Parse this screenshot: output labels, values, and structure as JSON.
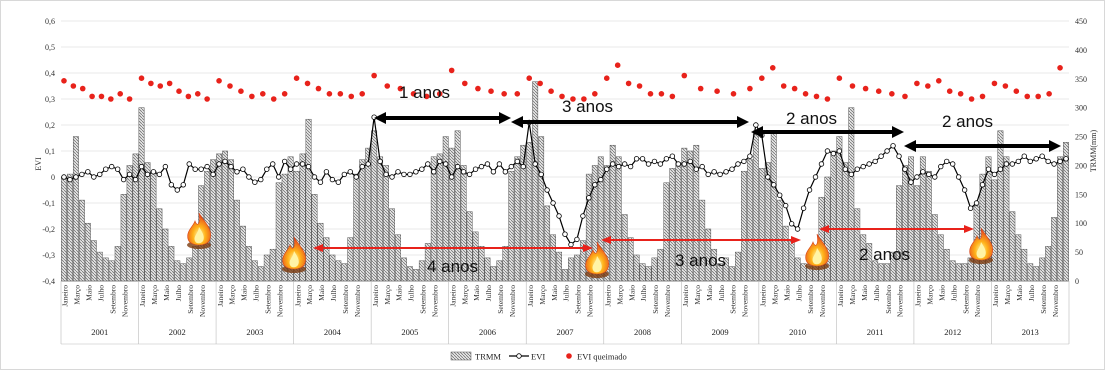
{
  "chart_data": {
    "type": "bar",
    "xlabel": "",
    "ylabel": "EVI",
    "y2label": "TRMM(mm)",
    "ylim": [
      -0.4,
      0.6
    ],
    "y2lim": [
      0,
      450
    ],
    "yticks": [
      "-0,4",
      "-0,3",
      "-0,2",
      "-0,1",
      "0",
      "0,1",
      "0,2",
      "0,3",
      "0,4",
      "0,5",
      "0,6"
    ],
    "y2ticks": [
      "0",
      "50",
      "100",
      "150",
      "200",
      "250",
      "300",
      "350",
      "400",
      "450"
    ],
    "grid": true,
    "legend_position": "bottom",
    "legend": [
      "TRMM",
      "EVI",
      "EVI queimado"
    ],
    "series_names": {
      "trmm": "TRMM",
      "evi": "EVI",
      "burned": "EVI queimado"
    },
    "month_labels": [
      "Janeiro",
      "Março",
      "Maio",
      "Julho",
      "Setembro",
      "Novembro"
    ],
    "years": [
      "2001",
      "2002",
      "2003",
      "2004",
      "2005",
      "2006",
      "2007",
      "2008",
      "2009",
      "2010",
      "2011",
      "2012",
      "2013"
    ],
    "trmm": [
      [
        180,
        185,
        250,
        140,
        100,
        70,
        50,
        40,
        35,
        60,
        150,
        200,
        220
      ],
      [
        300,
        205,
        190,
        125,
        90,
        60,
        35,
        30,
        40,
        60,
        165,
        190,
        210
      ],
      [
        220,
        225,
        210,
        140,
        95,
        60,
        35,
        25,
        45,
        55,
        170,
        185,
        215
      ],
      [
        190,
        220,
        280,
        150,
        100,
        75,
        45,
        35,
        30,
        75,
        185,
        210,
        230
      ],
      [
        260,
        215,
        200,
        125,
        80,
        40,
        25,
        20,
        35,
        65,
        215,
        220,
        250
      ],
      [
        230,
        260,
        200,
        120,
        85,
        60,
        40,
        25,
        35,
        60,
        190,
        215,
        235
      ],
      [
        240,
        345,
        250,
        130,
        80,
        50,
        20,
        40,
        45,
        70,
        185,
        200,
        215
      ],
      [
        200,
        235,
        215,
        115,
        75,
        45,
        30,
        25,
        40,
        55,
        170,
        195,
        205
      ],
      [
        230,
        225,
        235,
        140,
        90,
        55,
        30,
        40,
        25,
        50,
        190,
        210,
        260
      ],
      [
        195,
        205,
        260,
        140,
        95,
        70,
        40,
        30,
        25,
        50,
        145,
        180,
        225
      ],
      [
        250,
        205,
        300,
        125,
        80,
        65,
        35,
        30,
        30,
        50,
        165,
        200,
        215
      ],
      [
        165,
        215,
        190,
        115,
        80,
        55,
        35,
        30,
        30,
        40,
        130,
        185,
        215
      ],
      [
        175,
        260,
        215,
        120,
        80,
        55,
        30,
        25,
        40,
        60,
        110,
        215,
        240
      ]
    ],
    "evi": [
      [
        0.0,
        -0.01,
        0.0,
        0.01,
        0.02,
        0.0,
        0.01,
        0.03,
        0.04,
        0.03,
        -0.01,
        0.01,
        -0.01
      ],
      [
        0.04,
        0.01,
        0.02,
        0.01,
        0.04,
        -0.03,
        -0.05,
        -0.03,
        0.05,
        0.03,
        0.03,
        0.04,
        0.01
      ],
      [
        0.05,
        0.06,
        0.04,
        0.02,
        0.03,
        0.0,
        -0.02,
        -0.01,
        0.03,
        0.05,
        0.0,
        0.06,
        0.03
      ],
      [
        0.05,
        0.05,
        0.04,
        0.0,
        -0.02,
        0.02,
        -0.01,
        -0.02,
        0.01,
        0.02,
        0.0,
        0.04,
        0.05
      ],
      [
        0.23,
        0.06,
        0.01,
        0.0,
        0.02,
        0.01,
        0.01,
        0.02,
        0.03,
        0.05,
        0.02,
        0.06,
        0.05
      ],
      [
        0.0,
        0.04,
        0.02,
        0.01,
        0.03,
        0.04,
        0.05,
        0.02,
        0.05,
        0.02,
        0.04,
        0.06,
        0.04
      ],
      [
        0.21,
        0.05,
        0.01,
        -0.05,
        -0.1,
        -0.15,
        -0.22,
        -0.26,
        -0.24,
        -0.15,
        -0.08,
        -0.03,
        -0.01
      ],
      [
        0.03,
        0.05,
        0.04,
        0.05,
        0.04,
        0.07,
        0.07,
        0.05,
        0.06,
        0.05,
        0.07,
        0.08,
        0.05
      ],
      [
        0.05,
        0.06,
        0.03,
        0.04,
        0.01,
        0.02,
        0.01,
        0.02,
        0.03,
        0.05,
        0.06,
        0.08,
        0.2
      ],
      [
        0.16,
        0.0,
        -0.03,
        -0.07,
        -0.11,
        -0.18,
        -0.2,
        -0.12,
        -0.05,
        0.0,
        0.05,
        0.1,
        0.09
      ],
      [
        0.1,
        0.03,
        0.01,
        0.03,
        0.04,
        0.05,
        0.06,
        0.08,
        0.1,
        0.12,
        0.08,
        0.03,
        -0.02
      ],
      [
        0.0,
        0.02,
        0.01,
        0.0,
        0.04,
        0.06,
        0.05,
        0.0,
        -0.05,
        -0.12,
        -0.1,
        -0.03,
        0.03
      ],
      [
        0.01,
        0.03,
        0.05,
        0.05,
        0.06,
        0.08,
        0.06,
        0.07,
        0.08,
        0.06,
        0.05,
        0.06,
        0.07
      ]
    ],
    "burned_years": [
      "2001",
      "2002",
      "2003",
      "2004",
      "2005",
      "2006",
      "2007",
      "2008",
      "2009",
      "2010",
      "2011",
      "2012",
      "2013"
    ],
    "burned": [
      [
        0.37,
        0.35,
        0.34,
        0.31,
        0.31,
        0.3,
        0.32,
        0.3
      ],
      [
        0.38,
        0.36,
        0.35,
        0.36,
        0.33,
        0.31,
        0.32,
        0.3
      ],
      [
        0.37,
        0.35,
        0.33,
        0.31,
        0.32,
        0.3,
        0.32
      ],
      [
        0.38,
        0.36,
        0.34,
        0.32,
        0.32,
        0.31,
        0.32
      ],
      [
        0.39,
        0.35,
        0.34,
        0.32,
        0.31,
        0.32
      ],
      [
        0.41,
        0.36,
        0.34,
        0.33,
        0.32,
        0.32
      ],
      [
        0.38,
        0.36,
        0.33,
        0.31,
        0.3,
        0.3,
        0.32
      ],
      [
        0.38,
        0.43,
        0.36,
        0.35,
        0.32,
        0.32,
        0.31
      ],
      [
        0.39,
        0.34,
        0.33,
        0.32,
        0.34
      ],
      [
        0.38,
        0.42,
        0.35,
        0.34,
        0.32,
        0.31,
        0.3
      ],
      [
        0.38,
        0.35,
        0.34,
        0.33,
        0.32,
        0.31
      ],
      [
        0.36,
        0.35,
        0.37,
        0.33,
        0.32,
        0.3,
        0.31
      ],
      [
        0.36,
        0.35,
        0.33,
        0.31,
        0.31,
        0.32,
        0.42
      ]
    ],
    "annotations": [
      {
        "text": "1 anos",
        "color": "#000000"
      },
      {
        "text": "3 anos",
        "color": "#000000"
      },
      {
        "text": "2 anos",
        "color": "#000000"
      },
      {
        "text": "2 anos",
        "color": "#000000"
      },
      {
        "text": "4 anos",
        "color": "#e8221b"
      },
      {
        "text": "3 anos",
        "color": "#e8221b"
      },
      {
        "text": "2 anos",
        "color": "#e8221b"
      }
    ],
    "colors": {
      "bar_fill": "#d4d4d4",
      "bar_hatch": "#555555",
      "evi_line": "#000000",
      "burned_dot": "#e8221b",
      "black_arrow": "#000000",
      "red_arrow": "#e8221b"
    },
    "icons": [
      "fire-icon"
    ]
  }
}
